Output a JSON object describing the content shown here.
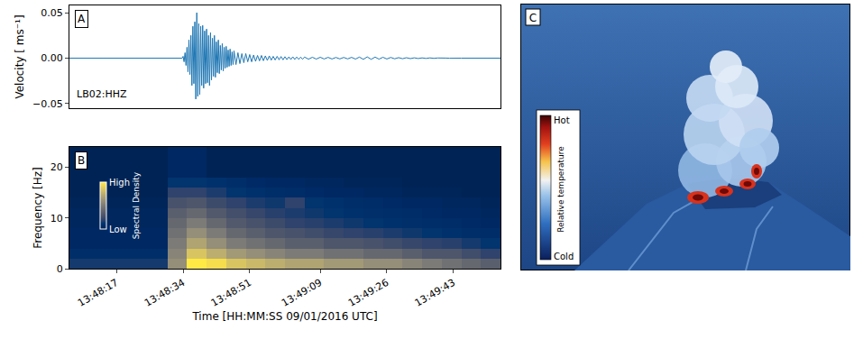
{
  "chart_data": [
    {
      "type": "line",
      "panel": "A",
      "annotation": "LB02:HHZ",
      "y_label": "Velocity [ ms⁻¹]",
      "color": "#1f77b4",
      "grid": false,
      "tick_labels": "y",
      "xlim": [
        49685,
        49795
      ],
      "ylim": [
        -0.055,
        0.058
      ],
      "yticks": [
        {
          "value": -0.05,
          "label": "−0.05"
        },
        {
          "value": 0,
          "label": "0.00"
        },
        0.05
      ],
      "x": [
        49685,
        49700,
        49713.75,
        49714,
        49714.25,
        49714.5,
        49714.75,
        49715,
        49715.25,
        49715.5,
        49715.75,
        49716,
        49716.25,
        49716.5,
        49716.75,
        49717,
        49717.25,
        49717.5,
        49717.75,
        49718,
        49718.25,
        49718.5,
        49718.75,
        49719,
        49719.25,
        49719.5,
        49719.75,
        49720,
        49720.25,
        49720.5,
        49720.75,
        49721,
        49721.25,
        49721.5,
        49721.75,
        49722,
        49722.25,
        49722.5,
        49722.75,
        49723,
        49723.25,
        49723.5,
        49723.75,
        49724,
        49724.25,
        49724.5,
        49724.75,
        49725,
        49725.25,
        49725.5,
        49725.75,
        49726,
        49726.25,
        49726.5,
        49726.75,
        49727,
        49727.5,
        49728,
        49728.5,
        49729,
        49729.5,
        49730,
        49730.5,
        49731,
        49731.5,
        49732,
        49732.5,
        49733,
        49733.5,
        49734,
        49734.5,
        49735,
        49735.5,
        49736,
        49736.5,
        49737,
        49737.5,
        49738,
        49738.5,
        49739,
        49739.5,
        49740,
        49740.5,
        49741,
        49741.5,
        49742,
        49742.5,
        49743,
        49743.5,
        49744,
        49744.5,
        49745,
        49746,
        49747,
        49748,
        49749,
        49750,
        49751,
        49752,
        49753,
        49754,
        49755,
        49756,
        49757,
        49758,
        49759,
        49760,
        49761,
        49762,
        49763,
        49764,
        49765,
        49766,
        49767,
        49768,
        49769,
        49770,
        49771,
        49772,
        49773,
        49774,
        49775,
        49776,
        49777,
        49778,
        49779,
        49780,
        49781,
        49782,
        49783,
        49784,
        49785,
        49795
      ],
      "values": [
        0,
        0,
        0,
        0.002,
        -0.004,
        0.006,
        -0.008,
        0.012,
        -0.015,
        0.02,
        -0.018,
        0.025,
        -0.03,
        0.035,
        -0.028,
        0.04,
        -0.045,
        0.05,
        -0.042,
        0.038,
        -0.04,
        0.035,
        -0.03,
        0.036,
        -0.033,
        0.03,
        -0.028,
        0.032,
        -0.027,
        0.025,
        -0.03,
        0.028,
        -0.024,
        0.022,
        -0.02,
        0.025,
        -0.021,
        0.018,
        -0.016,
        0.02,
        -0.017,
        0.014,
        -0.013,
        0.016,
        -0.014,
        0.012,
        -0.011,
        0.013,
        -0.01,
        0.009,
        -0.009,
        0.01,
        -0.008,
        0.007,
        -0.007,
        0.008,
        -0.007,
        0.006,
        -0.006,
        0.005,
        -0.005,
        0.005,
        -0.004,
        0.004,
        -0.004,
        0.0035,
        -0.0035,
        0.003,
        -0.003,
        0.003,
        -0.0028,
        0.0025,
        -0.0025,
        0.0025,
        -0.0022,
        0.002,
        -0.002,
        0.002,
        -0.0018,
        0.0018,
        -0.0018,
        0.0016,
        -0.0016,
        0.0015,
        -0.0015,
        0.0015,
        -0.0014,
        0.0013,
        -0.0013,
        0.0012,
        -0.0012,
        0.0012,
        -0.0011,
        0.001,
        -0.001,
        0.001,
        -0.0009,
        0.0009,
        -0.0009,
        0.0008,
        -0.0008,
        0.0008,
        -0.0008,
        0.0009,
        -0.001,
        0.0012,
        -0.0013,
        0.0014,
        -0.0013,
        0.0012,
        -0.0011,
        0.001,
        -0.0009,
        0.0008,
        -0.0007,
        0.0006,
        -0.0006,
        0.0005,
        -0.0005,
        0.0004,
        -0.0004,
        0.0003,
        -0.0003,
        0.0003,
        -0.0002,
        0.0002,
        -0.0002,
        0.0001,
        -0.0001,
        0.0001,
        0,
        0,
        0
      ]
    },
    {
      "type": "heatmap",
      "panel": "B",
      "x_label": "Time [HH:MM:SS 09/01/2016 UTC]",
      "y_label": "Frequency [Hz]",
      "color": "cividis",
      "grid": false,
      "xlim": [
        49685,
        49795
      ],
      "ylim": [
        0,
        24
      ],
      "xticks": [
        {
          "value": 49697,
          "label": "13:48:17"
        },
        {
          "value": 49714,
          "label": "13:48:34"
        },
        {
          "value": 49731,
          "label": "13:48:51"
        },
        {
          "value": 49749,
          "label": "13:49:09"
        },
        {
          "value": 49766,
          "label": "13:49:26"
        },
        {
          "value": 49783,
          "label": "13:49:43"
        }
      ],
      "yticks": [
        0,
        10,
        20
      ],
      "zlim": [
        0,
        1
      ],
      "zticks": [
        {
          "value": 0,
          "label": "Low"
        },
        {
          "value": 1,
          "label": "High"
        }
      ],
      "colorbar_title": "Spectral Density",
      "x": [
        49687.5,
        49692.5,
        49697.5,
        49702.5,
        49707.5,
        49712.5,
        49717.5,
        49722.5,
        49727.5,
        49732.5,
        49737.5,
        49742.5,
        49747.5,
        49752.5,
        49757.5,
        49762.5,
        49767.5,
        49772.5,
        49777.5,
        49782.5,
        49787.5,
        49792.5
      ],
      "y": [
        1,
        3,
        5,
        7,
        9,
        11,
        13,
        15,
        17,
        19,
        21,
        23
      ],
      "cells": [
        [
          0.15,
          0.15,
          0.15,
          0.15,
          0.15,
          0.6,
          1.0,
          0.95,
          0.85,
          0.8,
          0.75,
          0.7,
          0.7,
          0.65,
          0.65,
          0.6,
          0.6,
          0.55,
          0.5,
          0.45,
          0.4,
          0.35
        ],
        [
          0.08,
          0.08,
          0.08,
          0.08,
          0.08,
          0.55,
          0.85,
          0.75,
          0.65,
          0.6,
          0.55,
          0.5,
          0.5,
          0.45,
          0.45,
          0.4,
          0.4,
          0.35,
          0.3,
          0.3,
          0.25,
          0.2
        ],
        [
          0.05,
          0.05,
          0.05,
          0.05,
          0.05,
          0.5,
          0.7,
          0.6,
          0.5,
          0.45,
          0.4,
          0.35,
          0.35,
          0.3,
          0.3,
          0.28,
          0.25,
          0.22,
          0.2,
          0.18,
          0.15,
          0.12
        ],
        [
          0.05,
          0.05,
          0.05,
          0.05,
          0.05,
          0.45,
          0.6,
          0.5,
          0.4,
          0.35,
          0.3,
          0.28,
          0.25,
          0.22,
          0.2,
          0.18,
          0.16,
          0.14,
          0.12,
          0.1,
          0.08,
          0.07
        ],
        [
          0.04,
          0.04,
          0.04,
          0.04,
          0.04,
          0.4,
          0.5,
          0.4,
          0.32,
          0.28,
          0.24,
          0.2,
          0.18,
          0.16,
          0.14,
          0.12,
          0.1,
          0.09,
          0.08,
          0.07,
          0.06,
          0.05
        ],
        [
          0.04,
          0.04,
          0.04,
          0.04,
          0.04,
          0.35,
          0.4,
          0.32,
          0.26,
          0.22,
          0.18,
          0.16,
          0.14,
          0.12,
          0.1,
          0.09,
          0.08,
          0.07,
          0.06,
          0.05,
          0.05,
          0.04
        ],
        [
          0.03,
          0.03,
          0.03,
          0.03,
          0.03,
          0.28,
          0.3,
          0.24,
          0.2,
          0.16,
          0.14,
          0.2,
          0.12,
          0.1,
          0.08,
          0.07,
          0.06,
          0.05,
          0.05,
          0.04,
          0.04,
          0.03
        ],
        [
          0.02,
          0.02,
          0.02,
          0.02,
          0.02,
          0.2,
          0.2,
          0.16,
          0.12,
          0.1,
          0.08,
          0.07,
          0.06,
          0.05,
          0.05,
          0.04,
          0.04,
          0.03,
          0.03,
          0.03,
          0.02,
          0.02
        ],
        [
          0.02,
          0.02,
          0.02,
          0.02,
          0.02,
          0.12,
          0.12,
          0.1,
          0.08,
          0.06,
          0.05,
          0.05,
          0.04,
          0.04,
          0.03,
          0.03,
          0.03,
          0.02,
          0.02,
          0.02,
          0.02,
          0.02
        ],
        [
          0.02,
          0.02,
          0.02,
          0.02,
          0.02,
          0.05,
          0.05,
          0.02,
          0.02,
          0.02,
          0.02,
          0.02,
          0.02,
          0.02,
          0.02,
          0.02,
          0.02,
          0.02,
          0.02,
          0.02,
          0.02,
          0.02
        ],
        [
          0.02,
          0.02,
          0.02,
          0.02,
          0.02,
          0.05,
          0.05,
          0.02,
          0.02,
          0.02,
          0.02,
          0.02,
          0.02,
          0.02,
          0.02,
          0.02,
          0.02,
          0.02,
          0.02,
          0.02,
          0.02,
          0.02
        ],
        [
          0.02,
          0.02,
          0.02,
          0.02,
          0.02,
          0.05,
          0.05,
          0.02,
          0.02,
          0.02,
          0.02,
          0.02,
          0.02,
          0.02,
          0.02,
          0.02,
          0.02,
          0.02,
          0.02,
          0.02,
          0.02,
          0.02
        ]
      ]
    }
  ],
  "thermal_image": {
    "panel": "C",
    "colorbar": {
      "title": "Relative temperature",
      "top_label": "Hot",
      "bottom_label": "Cold"
    }
  }
}
